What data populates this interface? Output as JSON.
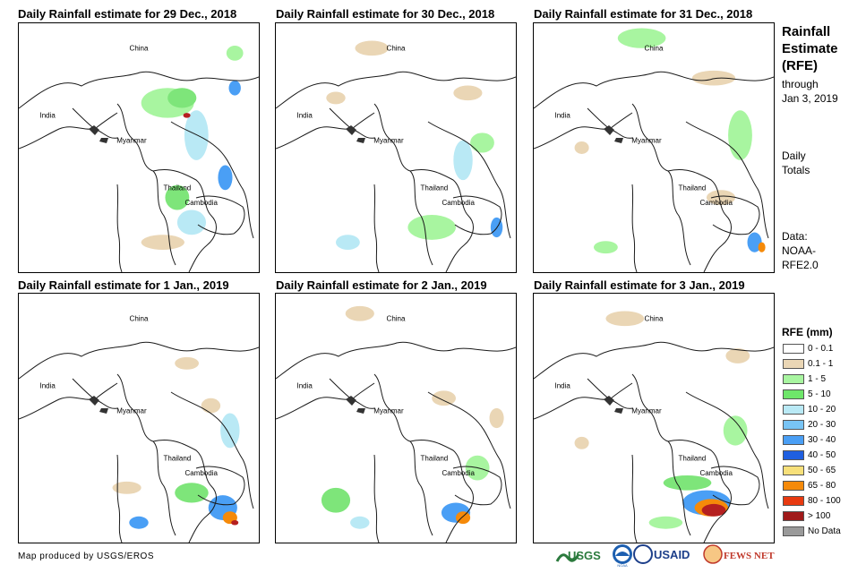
{
  "panels": [
    {
      "title": "Daily Rainfall estimate for 29 Dec., 2018",
      "rain": [
        [
          "#a8f5a0",
          0.62,
          0.32,
          0.22,
          0.12
        ],
        [
          "#7ee57a",
          0.68,
          0.3,
          0.12,
          0.08
        ],
        [
          "#b9e9f5",
          0.74,
          0.45,
          0.1,
          0.2
        ],
        [
          "#4a9ff5",
          0.86,
          0.62,
          0.06,
          0.1
        ],
        [
          "#4a9ff5",
          0.9,
          0.26,
          0.05,
          0.06
        ],
        [
          "#b9e9f5",
          0.72,
          0.8,
          0.12,
          0.1
        ],
        [
          "#7ee57a",
          0.66,
          0.7,
          0.1,
          0.1
        ],
        [
          "#ead6b5",
          0.6,
          0.88,
          0.18,
          0.06
        ],
        [
          "#b52020",
          0.7,
          0.37,
          0.03,
          0.02
        ],
        [
          "#a8f5a0",
          0.9,
          0.12,
          0.07,
          0.06
        ]
      ]
    },
    {
      "title": "Daily Rainfall estimate for 30 Dec., 2018",
      "rain": [
        [
          "#ead6b5",
          0.4,
          0.1,
          0.14,
          0.06
        ],
        [
          "#ead6b5",
          0.8,
          0.28,
          0.12,
          0.06
        ],
        [
          "#b9e9f5",
          0.78,
          0.55,
          0.08,
          0.16
        ],
        [
          "#4a9ff5",
          0.92,
          0.82,
          0.05,
          0.08
        ],
        [
          "#a8f5a0",
          0.65,
          0.82,
          0.2,
          0.1
        ],
        [
          "#b9e9f5",
          0.3,
          0.88,
          0.1,
          0.06
        ],
        [
          "#a8f5a0",
          0.86,
          0.48,
          0.1,
          0.08
        ],
        [
          "#ead6b5",
          0.25,
          0.3,
          0.08,
          0.05
        ]
      ]
    },
    {
      "title": "Daily Rainfall estimate for 31 Dec., 2018",
      "rain": [
        [
          "#a8f5a0",
          0.45,
          0.06,
          0.2,
          0.08
        ],
        [
          "#ead6b5",
          0.75,
          0.22,
          0.18,
          0.06
        ],
        [
          "#a8f5a0",
          0.86,
          0.45,
          0.1,
          0.2
        ],
        [
          "#ead6b5",
          0.78,
          0.7,
          0.12,
          0.06
        ],
        [
          "#4a9ff5",
          0.92,
          0.88,
          0.06,
          0.08
        ],
        [
          "#f58a0a",
          0.95,
          0.9,
          0.03,
          0.04
        ],
        [
          "#a8f5a0",
          0.3,
          0.9,
          0.1,
          0.05
        ],
        [
          "#ead6b5",
          0.2,
          0.5,
          0.06,
          0.05
        ]
      ]
    },
    {
      "title": "Daily Rainfall estimate for 1 Jan., 2019",
      "rain": [
        [
          "#ead6b5",
          0.7,
          0.28,
          0.1,
          0.05
        ],
        [
          "#ead6b5",
          0.8,
          0.45,
          0.08,
          0.06
        ],
        [
          "#b9e9f5",
          0.88,
          0.55,
          0.08,
          0.14
        ],
        [
          "#4a9ff5",
          0.85,
          0.86,
          0.12,
          0.1
        ],
        [
          "#f58a0a",
          0.88,
          0.9,
          0.06,
          0.05
        ],
        [
          "#b52020",
          0.9,
          0.92,
          0.03,
          0.02
        ],
        [
          "#7ee57a",
          0.72,
          0.8,
          0.14,
          0.08
        ],
        [
          "#ead6b5",
          0.45,
          0.78,
          0.12,
          0.05
        ],
        [
          "#4a9ff5",
          0.5,
          0.92,
          0.08,
          0.05
        ]
      ]
    },
    {
      "title": "Daily Rainfall estimate for 2 Jan., 2019",
      "rain": [
        [
          "#ead6b5",
          0.35,
          0.08,
          0.12,
          0.06
        ],
        [
          "#ead6b5",
          0.7,
          0.42,
          0.1,
          0.06
        ],
        [
          "#7ee57a",
          0.25,
          0.83,
          0.12,
          0.1
        ],
        [
          "#4a9ff5",
          0.75,
          0.88,
          0.12,
          0.08
        ],
        [
          "#f58a0a",
          0.78,
          0.9,
          0.06,
          0.05
        ],
        [
          "#a8f5a0",
          0.84,
          0.7,
          0.1,
          0.1
        ],
        [
          "#ead6b5",
          0.92,
          0.5,
          0.06,
          0.08
        ],
        [
          "#b9e9f5",
          0.35,
          0.92,
          0.08,
          0.05
        ]
      ]
    },
    {
      "title": "Daily Rainfall estimate for 3 Jan., 2019",
      "rain": [
        [
          "#ead6b5",
          0.38,
          0.1,
          0.16,
          0.06
        ],
        [
          "#ead6b5",
          0.85,
          0.25,
          0.1,
          0.06
        ],
        [
          "#a8f5a0",
          0.84,
          0.55,
          0.1,
          0.12
        ],
        [
          "#4a9ff5",
          0.72,
          0.84,
          0.2,
          0.1
        ],
        [
          "#f58a0a",
          0.74,
          0.86,
          0.14,
          0.07
        ],
        [
          "#b52020",
          0.75,
          0.87,
          0.1,
          0.05
        ],
        [
          "#7ee57a",
          0.64,
          0.76,
          0.2,
          0.06
        ],
        [
          "#a8f5a0",
          0.55,
          0.92,
          0.14,
          0.05
        ],
        [
          "#ead6b5",
          0.2,
          0.6,
          0.06,
          0.05
        ]
      ]
    }
  ],
  "map_labels": {
    "china": "China",
    "india": "India",
    "myanmar": "Myanmar",
    "thailand": "Thailand",
    "cambodia": "Cambodia"
  },
  "side": {
    "title_line1": "Rainfall",
    "title_line2": "Estimate",
    "title_line3": "(RFE)",
    "through": "through",
    "through_date": "Jan 3, 2019",
    "daily": "Daily",
    "totals": "Totals",
    "data_label": "Data:",
    "data_source1": "NOAA-",
    "data_source2": "RFE2.0"
  },
  "legend": {
    "title": "RFE (mm)",
    "items": [
      {
        "label": "0 - 0.1",
        "color": "#ffffff"
      },
      {
        "label": "0.1 - 1",
        "color": "#ead6b5"
      },
      {
        "label": "1 - 5",
        "color": "#a8f5a0"
      },
      {
        "label": "5 - 10",
        "color": "#6ee66a"
      },
      {
        "label": "10 - 20",
        "color": "#b9e9f5"
      },
      {
        "label": "20 - 30",
        "color": "#78c4f5"
      },
      {
        "label": "30 - 40",
        "color": "#4a9ff5"
      },
      {
        "label": "40 - 50",
        "color": "#1f5fe0"
      },
      {
        "label": "50 - 65",
        "color": "#f7e07a"
      },
      {
        "label": "65 - 80",
        "color": "#f58a0a"
      },
      {
        "label": "80 - 100",
        "color": "#e83a10"
      },
      {
        "label": "> 100",
        "color": "#a01a1a"
      },
      {
        "label": "No Data",
        "color": "#9a9a9a"
      }
    ]
  },
  "footer": {
    "credit": "Map produced by USGS/EROS",
    "logos": [
      "USGS",
      "NOAA",
      "USAID",
      "FEWS NET"
    ]
  }
}
